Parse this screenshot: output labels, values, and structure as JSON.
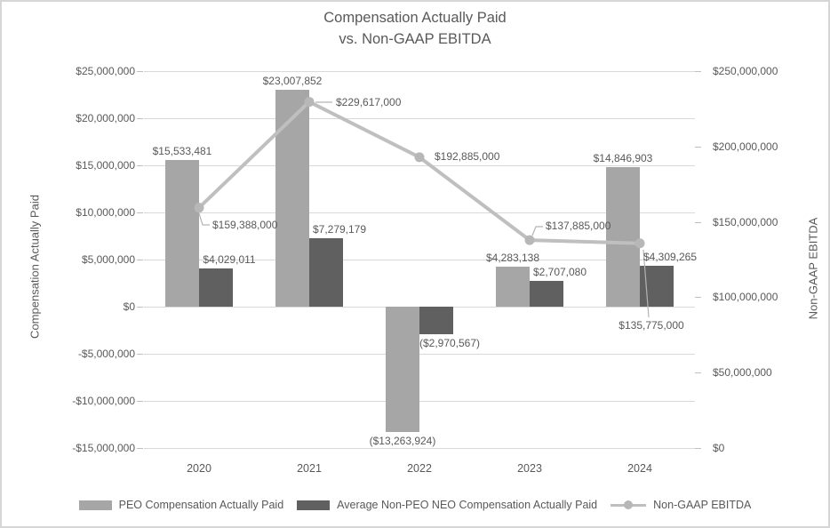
{
  "title": {
    "line1": "Compensation Actually Paid",
    "line2": "vs. Non-GAAP EBITDA"
  },
  "colors": {
    "peo_bar": "#a6a6a6",
    "non_peo_bar": "#606060",
    "ebitda_line": "#bfbfbf",
    "text": "#595959",
    "gridline": "#d9d9d9",
    "frame_border": "#d6d6d6"
  },
  "chart_data": {
    "type": "bar",
    "subtype": "clustered-bar-with-line-combo",
    "categories": [
      "2020",
      "2021",
      "2022",
      "2023",
      "2024"
    ],
    "series": [
      {
        "name": "PEO Compensation Actually Paid",
        "render": "bar",
        "axis": "left",
        "color": "#a6a6a6",
        "values": [
          15533481,
          23007852,
          -13263924,
          4283138,
          14846903
        ],
        "labels": [
          "$15,533,481",
          "$23,007,852",
          "($13,263,924)",
          "$4,283,138",
          "$14,846,903"
        ]
      },
      {
        "name": "Average Non-PEO NEO Compensation Actually Paid",
        "render": "bar",
        "axis": "left",
        "color": "#606060",
        "values": [
          4029011,
          7279179,
          -2970567,
          2707080,
          4309265
        ],
        "labels": [
          "$4,029,011",
          "$7,279,179",
          "($2,970,567)",
          "$2,707,080",
          "$4,309,265"
        ]
      },
      {
        "name": "Non-GAAP EBITDA",
        "render": "line",
        "axis": "right",
        "color": "#bfbfbf",
        "values": [
          159388000,
          229617000,
          192885000,
          137885000,
          135775000
        ],
        "labels": [
          "$159,388,000",
          "$229,617,000",
          "$192,885,000",
          "$137,885,000",
          "$135,775,000"
        ]
      }
    ],
    "left_axis": {
      "title": "Compensation Actually Paid",
      "min": -15000000,
      "max": 25000000,
      "step": 5000000,
      "tick_labels": [
        "$25,000,000",
        "$20,000,000",
        "$15,000,000",
        "$10,000,000",
        "$5,000,000",
        "$0",
        "-$5,000,000",
        "-$10,000,000",
        "-$15,000,000"
      ]
    },
    "right_axis": {
      "title": "Non-GAAP EBITDA",
      "min": 0,
      "max": 250000000,
      "step": 50000000,
      "tick_labels": [
        "$250,000,000",
        "$200,000,000",
        "$150,000,000",
        "$100,000,000",
        "$50,000,000",
        "$0"
      ]
    },
    "grid": true,
    "legend_position": "bottom"
  },
  "legend": {
    "items": [
      {
        "label": "PEO Compensation Actually Paid"
      },
      {
        "label": "Average Non-PEO NEO Compensation Actually Paid"
      },
      {
        "label": "Non-GAAP EBITDA"
      }
    ]
  }
}
